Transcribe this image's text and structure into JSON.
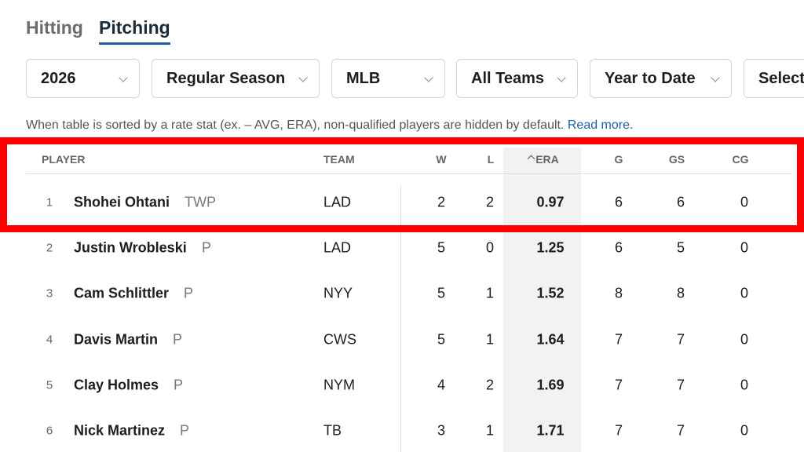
{
  "tabs": [
    "Hitting",
    "Pitching"
  ],
  "filters": [
    "2026",
    "Regular Season",
    "MLB",
    "All Teams",
    "Year to Date",
    "Select"
  ],
  "notice": {
    "text": "When table is sorted by a rate stat (ex. – AVG, ERA), non-qualified players are hidden by default.",
    "link": "Read more."
  },
  "table": {
    "headers": [
      "PLAYER",
      "TEAM",
      "W",
      "L",
      "ERA",
      "G",
      "GS",
      "CG"
    ],
    "rows": [
      [
        1,
        "Shohei Ohtani",
        "TWP",
        "LAD",
        2,
        2,
        0.97,
        6,
        6,
        0
      ],
      [
        2,
        "Justin Wrobleski",
        "P",
        "LAD",
        5,
        0,
        1.25,
        6,
        5,
        0
      ],
      [
        3,
        "Cam Schlittler",
        "P",
        "NYY",
        5,
        1,
        1.52,
        8,
        8,
        0
      ],
      [
        4,
        "Davis Martin",
        "P",
        "CWS",
        5,
        1,
        1.64,
        7,
        7,
        0
      ],
      [
        5,
        "Clay Holmes",
        "P",
        "NYM",
        4,
        2,
        1.69,
        7,
        7,
        0
      ],
      [
        6,
        "Nick Martinez",
        "P",
        "TB",
        3,
        1,
        1.71,
        7,
        7,
        0
      ]
    ]
  }
}
